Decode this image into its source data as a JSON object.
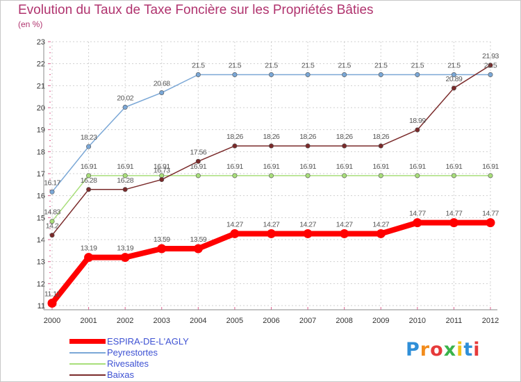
{
  "chart_data": {
    "type": "line",
    "title": "Evolution du Taux de Taxe Foncière sur les Propriétés Bâties",
    "subtitle": "(en %)",
    "xlabel": "",
    "ylabel": "(en %)",
    "categories": [
      "2000",
      "2001",
      "2002",
      "2003",
      "2004",
      "2005",
      "2006",
      "2007",
      "2008",
      "2009",
      "2010",
      "2011",
      "2012"
    ],
    "ylim": [
      11,
      23
    ],
    "yticks": [
      "11",
      "12",
      "13",
      "14",
      "15",
      "16",
      "17",
      "18",
      "19",
      "20",
      "21",
      "22",
      "23"
    ],
    "grid": true,
    "legend_position": "bottom-left",
    "series": [
      {
        "name": "ESPIRA-DE-L'AGLY",
        "color": "#ff0000",
        "values": [
          11.11,
          13.19,
          13.19,
          13.59,
          13.59,
          14.27,
          14.27,
          14.27,
          14.27,
          14.27,
          14.77,
          14.77,
          14.77
        ],
        "labels": [
          "11.11",
          "13.19",
          "13.19",
          "13.59",
          "13.59",
          "14.27",
          "14.27",
          "14.27",
          "14.27",
          "14.27",
          "14.77",
          "14.77",
          "14.77"
        ]
      },
      {
        "name": "Peyrestortes",
        "color": "#7aa7d6",
        "values": [
          16.17,
          18.23,
          20.02,
          20.68,
          21.5,
          21.5,
          21.5,
          21.5,
          21.5,
          21.5,
          21.5,
          21.5,
          21.5
        ],
        "labels": [
          "16.17",
          "18.23",
          "20.02",
          "20.68",
          "21.5",
          "21.5",
          "21.5",
          "21.5",
          "21.5",
          "21.5",
          "21.5",
          "21.5",
          "21.5"
        ]
      },
      {
        "name": "Rivesaltes",
        "color": "#a8de7a",
        "values": [
          14.83,
          16.91,
          16.91,
          16.91,
          16.91,
          16.91,
          16.91,
          16.91,
          16.91,
          16.91,
          16.91,
          16.91,
          16.91
        ],
        "labels": [
          "14.83",
          "16.91",
          "16.91",
          "16.91",
          "16.91",
          "16.91",
          "16.91",
          "16.91",
          "16.91",
          "16.91",
          "16.91",
          "16.91",
          "16.91"
        ]
      },
      {
        "name": "Baixas",
        "color": "#7a2a2a",
        "values": [
          14.2,
          16.28,
          16.28,
          16.73,
          17.56,
          18.26,
          18.26,
          18.26,
          18.26,
          18.26,
          18.99,
          20.89,
          21.93
        ],
        "labels": [
          "14.2",
          "16.28",
          "16.28",
          "16.73",
          "17.56",
          "18.26",
          "18.26",
          "18.26",
          "18.26",
          "18.26",
          "18.99",
          "20.89",
          "21.93"
        ]
      }
    ]
  },
  "logo": {
    "text": "Proxiti",
    "colors": [
      "#2f8fd8",
      "#f28c1c",
      "#e63a3a",
      "#3ab34a",
      "#f2c21c",
      "#2f8fd8",
      "#e63a3a"
    ]
  }
}
